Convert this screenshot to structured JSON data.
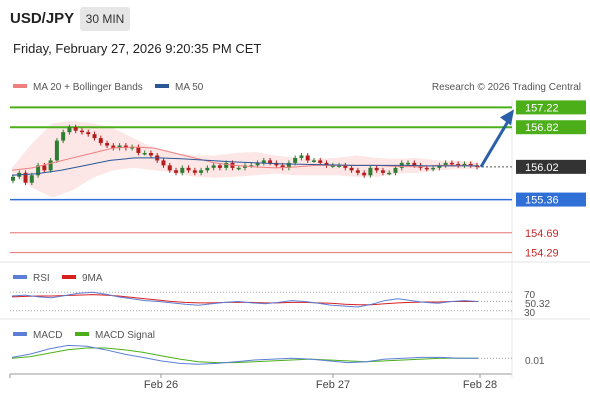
{
  "header": {
    "symbol": "USD/JPY",
    "interval": "30 MIN",
    "datetime": "Friday, February 27, 2026 9:20:35 PM CET"
  },
  "colors": {
    "bollinger": "#f08080",
    "ma50": "#2b5797",
    "resistance": "#4caf1a",
    "current": "#333333",
    "support": "#2f6fd6",
    "weak_level": "#e57373",
    "level_text_red": "#c62828",
    "rsi": "#5b7fd6",
    "rsi_ma": "#d62020",
    "macd": "#5b7fd6",
    "macd_signal": "#4caf1a",
    "arrow": "#2b5fa8"
  },
  "icons": {
    "forecast_arrow": "arrow-up-right-icon"
  },
  "chart_data": [
    {
      "type": "candlestick",
      "panel": "price",
      "legend": [
        "MA 20 + Bollinger Bands",
        "MA 50"
      ],
      "legend_placement": "top-left",
      "attribution": "Research © 2026 Trading Central",
      "ylim": [
        154.1,
        157.45
      ],
      "x_tick_labels": [
        "Feb 26",
        "Feb 27",
        "Feb 28"
      ],
      "close_series": [
        155.82,
        155.9,
        155.7,
        155.85,
        156.05,
        155.95,
        156.15,
        156.55,
        156.72,
        156.82,
        156.75,
        156.72,
        156.68,
        156.6,
        156.5,
        156.45,
        156.4,
        156.45,
        156.4,
        156.42,
        156.3,
        156.3,
        156.25,
        156.15,
        156.05,
        155.95,
        155.9,
        156.0,
        155.95,
        155.9,
        155.95,
        156.0,
        156.05,
        156.0,
        156.1,
        156.0,
        156.0,
        156.05,
        156.05,
        156.1,
        156.15,
        156.1,
        156.05,
        156.0,
        156.1,
        156.2,
        156.25,
        156.15,
        156.15,
        156.1,
        156.05,
        156.05,
        156.05,
        156.0,
        155.95,
        155.9,
        155.85,
        156.0,
        155.95,
        155.9,
        155.9,
        156.0,
        156.1,
        156.1,
        156.05,
        156.0,
        155.98,
        156.0,
        156.05,
        156.1,
        156.08,
        156.05,
        156.08,
        156.05,
        156.02
      ],
      "ma20": [
        155.95,
        156.0,
        156.1,
        156.2,
        156.3,
        156.4,
        156.42,
        156.4,
        156.3,
        156.2,
        156.1,
        156.05,
        156.02,
        156.0,
        156.02,
        156.05,
        156.05,
        156.05,
        156.05,
        156.03,
        156.02,
        156.05,
        156.05,
        156.04
      ],
      "bollinger_upper": [
        156.0,
        156.5,
        156.9,
        156.95,
        156.9,
        156.8,
        156.6,
        156.4,
        156.3,
        156.25,
        156.25,
        156.3,
        156.32,
        156.25,
        156.2,
        156.18,
        156.2,
        156.25,
        156.2,
        156.18,
        156.2,
        156.15,
        156.14,
        156.12
      ],
      "bollinger_lower": [
        155.9,
        155.6,
        155.4,
        155.55,
        155.8,
        155.95,
        156.0,
        155.95,
        155.9,
        155.82,
        155.8,
        155.82,
        155.85,
        155.88,
        155.85,
        155.85,
        155.85,
        155.82,
        155.82,
        155.88,
        155.9,
        155.95,
        155.97,
        155.98
      ],
      "ma50": [
        155.85,
        155.88,
        155.95,
        156.05,
        156.15,
        156.2,
        156.2,
        156.18,
        156.15,
        156.12,
        156.1,
        156.08,
        156.07,
        156.06,
        156.05,
        156.05,
        156.05,
        156.04,
        156.04,
        156.04
      ],
      "levels": [
        {
          "label": "157.22",
          "value": 157.22,
          "kind": "resistance"
        },
        {
          "label": "156.82",
          "value": 156.82,
          "kind": "resistance"
        },
        {
          "label": "156.02",
          "value": 156.02,
          "kind": "current"
        },
        {
          "label": "155.36",
          "value": 155.36,
          "kind": "support"
        },
        {
          "label": "154.69",
          "value": 154.69,
          "kind": "weak"
        },
        {
          "label": "154.29",
          "value": 154.29,
          "kind": "weak"
        }
      ]
    },
    {
      "type": "line",
      "panel": "rsi",
      "legend": [
        "RSI",
        "9MA"
      ],
      "ylim": [
        25,
        75
      ],
      "y_tick_labels": [
        "70",
        "30"
      ],
      "last_value_label": "50.32",
      "series": [
        {
          "name": "RSI",
          "values": [
            62,
            64,
            60,
            58,
            63,
            68,
            70,
            66,
            60,
            56,
            52,
            50,
            47,
            44,
            42,
            45,
            48,
            50,
            47,
            45,
            48,
            52,
            50,
            46,
            42,
            40,
            38,
            44,
            52,
            56,
            52,
            48,
            46,
            50,
            52,
            50
          ]
        },
        {
          "name": "9MA",
          "values": [
            60,
            61,
            62,
            62,
            63,
            64,
            65,
            64,
            62,
            59,
            56,
            53,
            50,
            48,
            47,
            47,
            48,
            48,
            48,
            47,
            47,
            48,
            48,
            47,
            46,
            44,
            43,
            43,
            45,
            47,
            48,
            49,
            49,
            50,
            50,
            50
          ]
        }
      ]
    },
    {
      "type": "line",
      "panel": "macd",
      "legend": [
        "MACD",
        "MACD Signal"
      ],
      "ylim": [
        -0.15,
        0.2
      ],
      "last_value_label": "0.01",
      "series": [
        {
          "name": "MACD",
          "values": [
            0.02,
            0.06,
            0.12,
            0.16,
            0.15,
            0.11,
            0.06,
            0.02,
            -0.02,
            -0.05,
            -0.06,
            -0.05,
            -0.03,
            -0.01,
            0.0,
            0.01,
            0.0,
            -0.02,
            -0.04,
            -0.03,
            0.0,
            0.01,
            0.02,
            0.02,
            0.01,
            0.01
          ]
        },
        {
          "name": "MACD Signal",
          "values": [
            0.01,
            0.03,
            0.07,
            0.11,
            0.13,
            0.13,
            0.11,
            0.08,
            0.04,
            0.0,
            -0.03,
            -0.04,
            -0.04,
            -0.03,
            -0.02,
            -0.01,
            0.0,
            -0.01,
            -0.02,
            -0.03,
            -0.02,
            -0.01,
            0.0,
            0.01,
            0.01,
            0.01
          ]
        }
      ]
    }
  ]
}
